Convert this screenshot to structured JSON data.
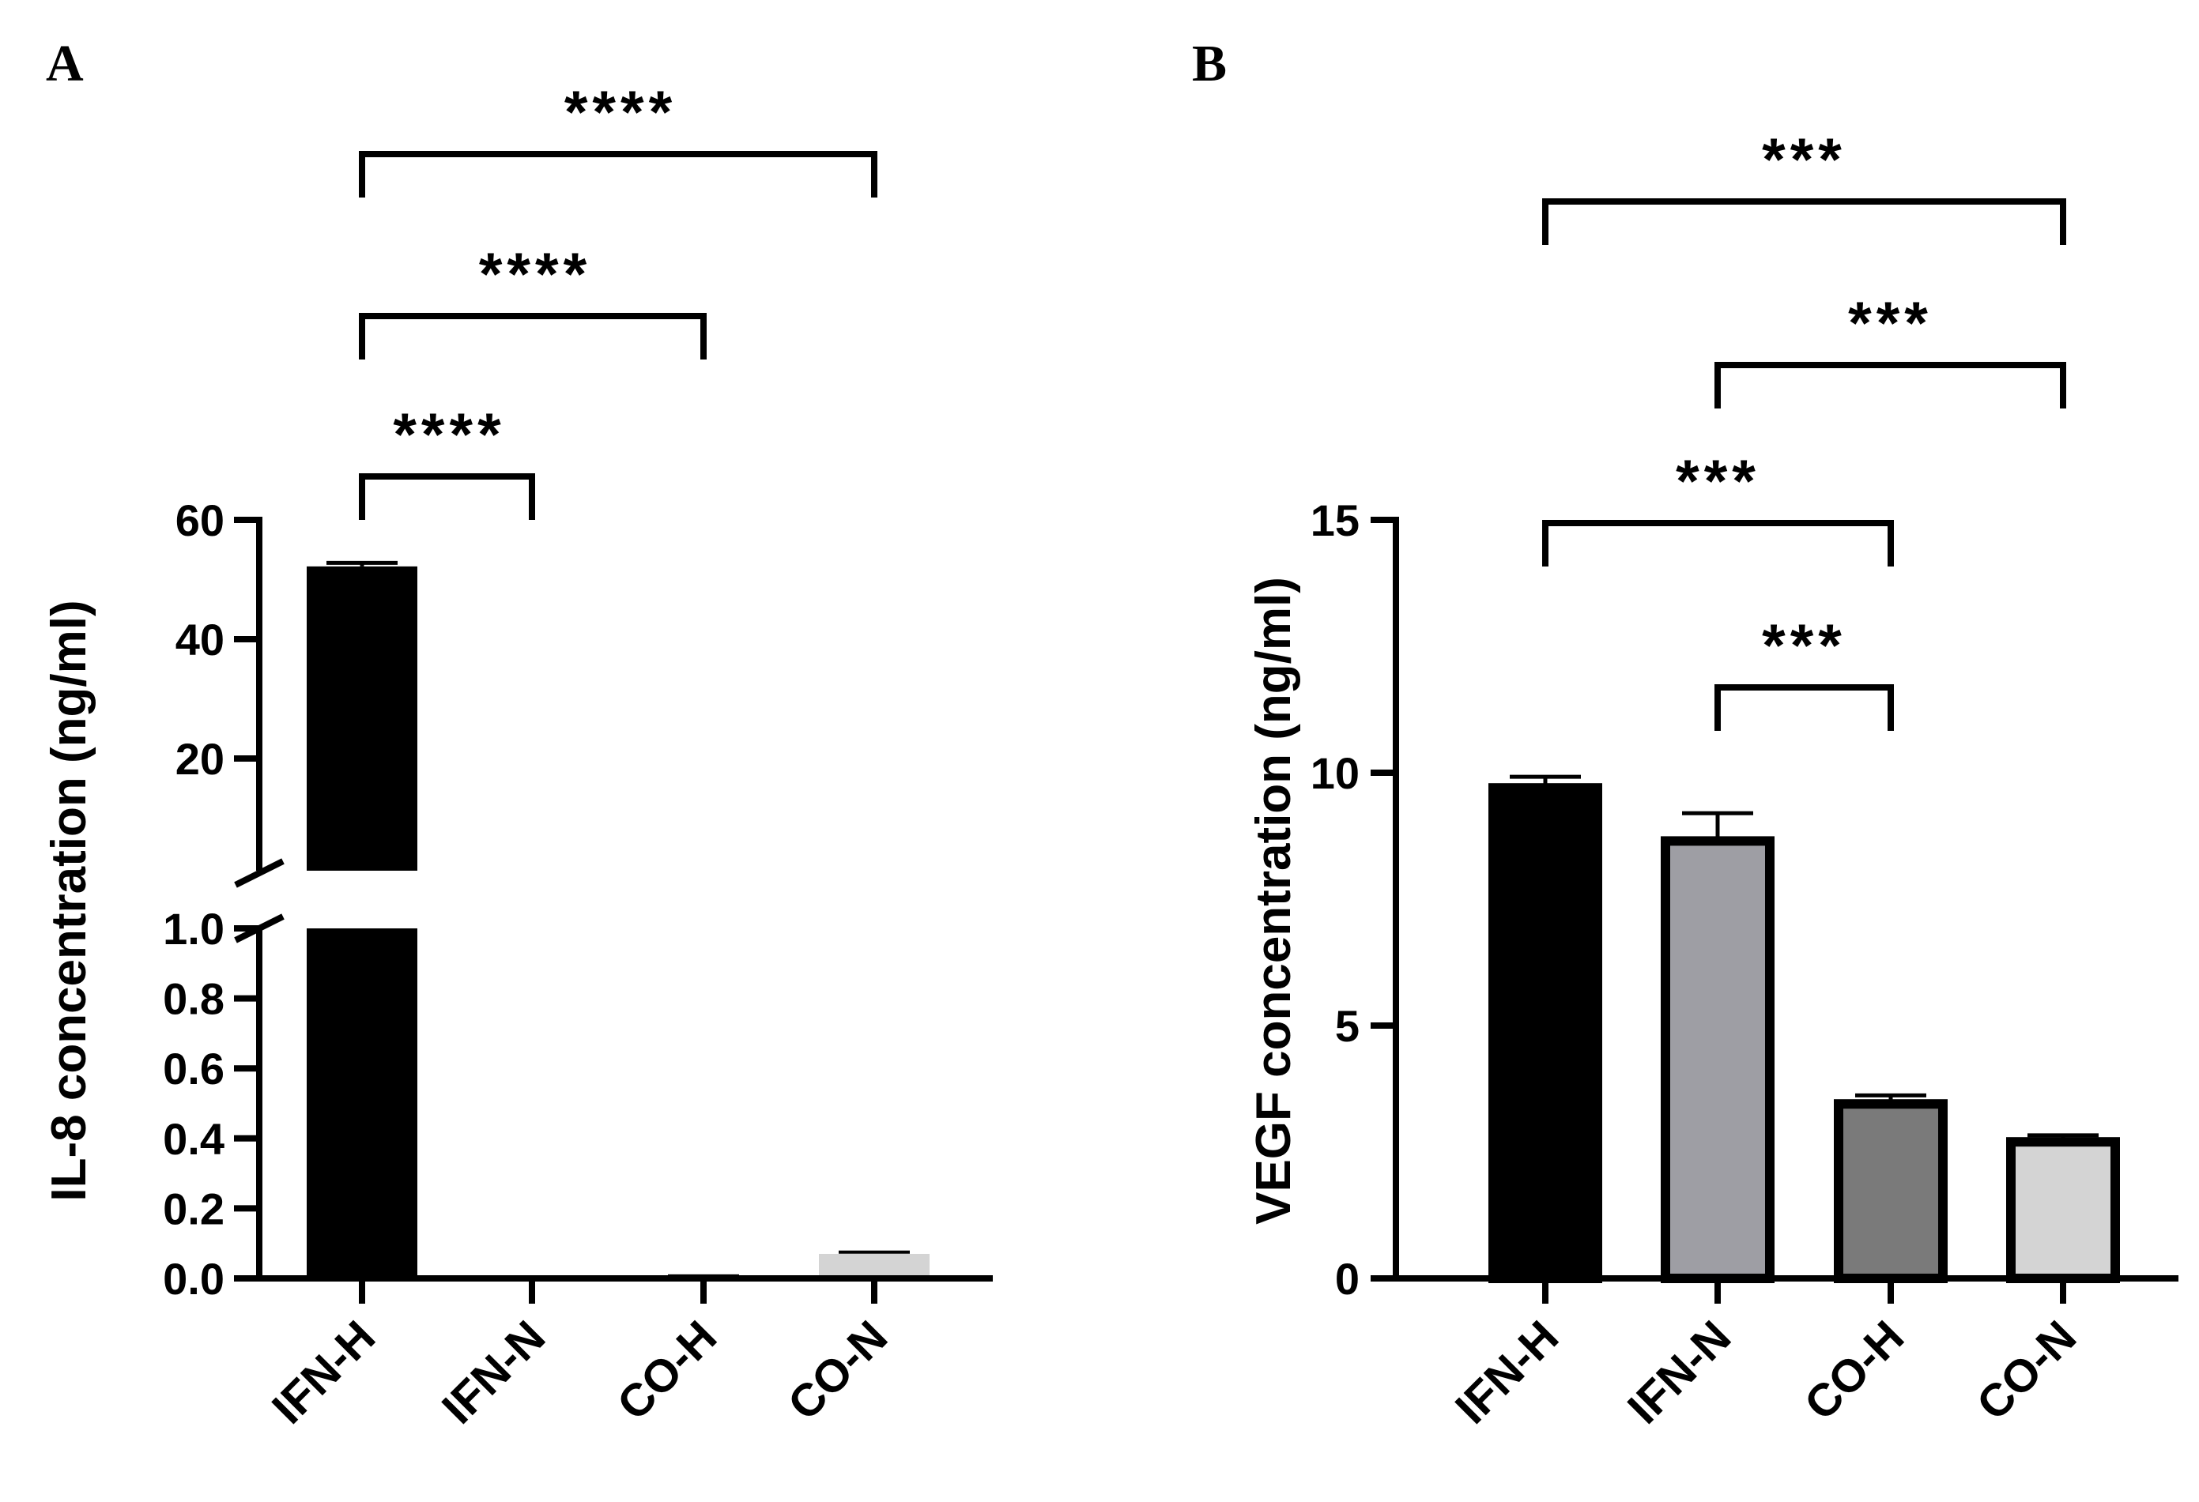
{
  "chart_data": [
    {
      "panel": "A",
      "type": "bar",
      "ylabel": "IL-8 concentration (ng/ml)",
      "xlabel": "",
      "categories": [
        "IFN-H",
        "IFN-N",
        "CO-H",
        "CO-N"
      ],
      "values": [
        52.2,
        0.0,
        0.005,
        0.07
      ],
      "errors": [
        0.6,
        0.0,
        0.002,
        0.005
      ],
      "colors": [
        "#000000",
        "#9e9ea4",
        "#7a7a7a",
        "#d4d4d4"
      ],
      "axis_break": {
        "lower": [
          0,
          1.0
        ],
        "upper": [
          1.0,
          60
        ]
      },
      "lower_ticks": [
        "0.0",
        "0.2",
        "0.4",
        "0.6",
        "0.8",
        "1.0"
      ],
      "upper_ticks": [
        "20",
        "40",
        "60"
      ],
      "significance": [
        {
          "from": 0,
          "to": 1,
          "label": "****"
        },
        {
          "from": 0,
          "to": 2,
          "label": "****"
        },
        {
          "from": 0,
          "to": 3,
          "label": "****"
        }
      ]
    },
    {
      "panel": "B",
      "type": "bar",
      "ylabel": "VEGF concentration (ng/ml)",
      "xlabel": "",
      "categories": [
        "IFN-H",
        "IFN-N",
        "CO-H",
        "CO-N"
      ],
      "values": [
        9.7,
        8.65,
        3.45,
        2.7
      ],
      "errors": [
        0.22,
        0.55,
        0.17,
        0.13
      ],
      "colors": [
        "#000000",
        "#9e9ea4",
        "#7a7a7a",
        "#d4d4d4"
      ],
      "ylim": [
        0,
        15
      ],
      "yticks": [
        "0",
        "5",
        "10",
        "15"
      ],
      "significance": [
        {
          "from": 1,
          "to": 2,
          "label": "***"
        },
        {
          "from": 0,
          "to": 2,
          "label": "***"
        },
        {
          "from": 1,
          "to": 3,
          "label": "***"
        },
        {
          "from": 0,
          "to": 3,
          "label": "***"
        }
      ]
    }
  ]
}
